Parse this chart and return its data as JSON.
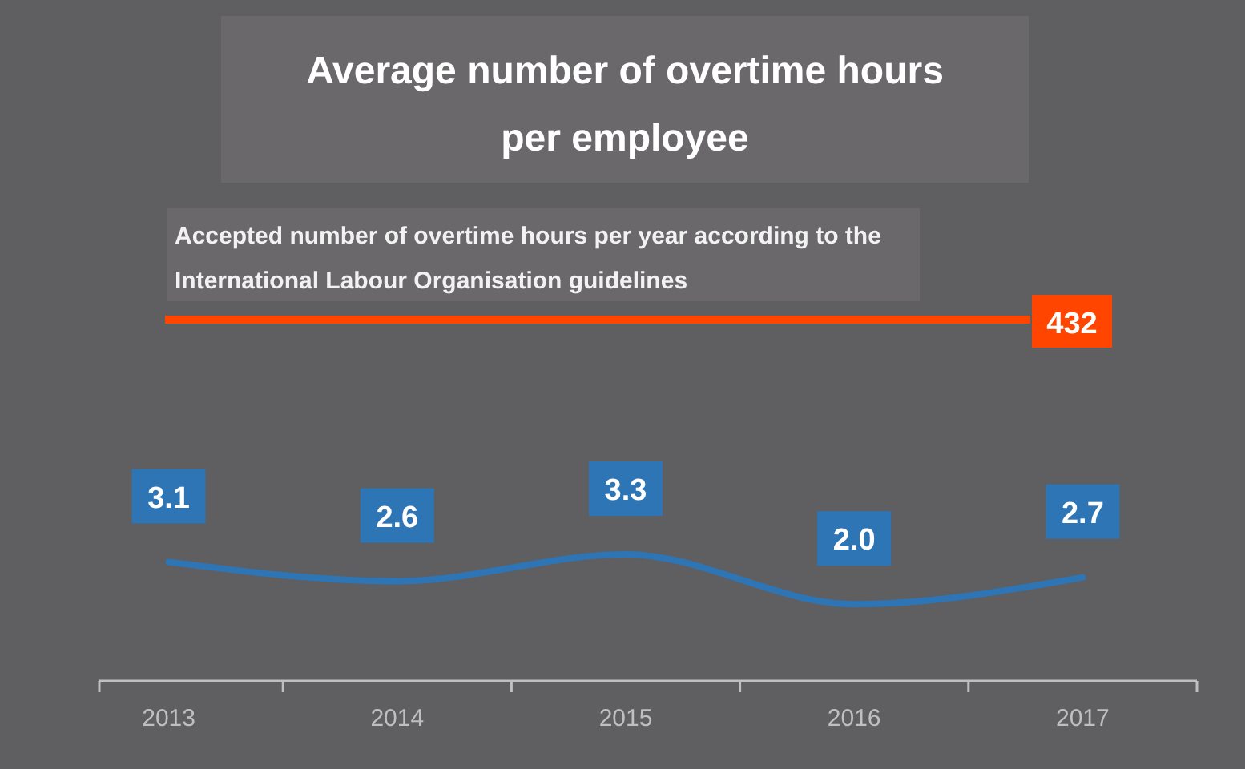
{
  "chart_data": {
    "type": "line",
    "title": "Average number of overtime hours per employee",
    "categories": [
      "2013",
      "2014",
      "2015",
      "2016",
      "2017"
    ],
    "series": [
      {
        "color": "#2e75b6",
        "values": [
          3.1,
          2.6,
          3.3,
          2.0,
          2.7
        ],
        "value_labels": [
          "3.1",
          "2.6",
          "3.3",
          "2.0",
          "2.7"
        ]
      }
    ],
    "tick_labels": "x",
    "marker": "none",
    "line_style": "solid",
    "annotations": [
      "Accepted number of overtime hours per year according to the International Labour Organisation guidelines",
      "432"
    ]
  }
}
